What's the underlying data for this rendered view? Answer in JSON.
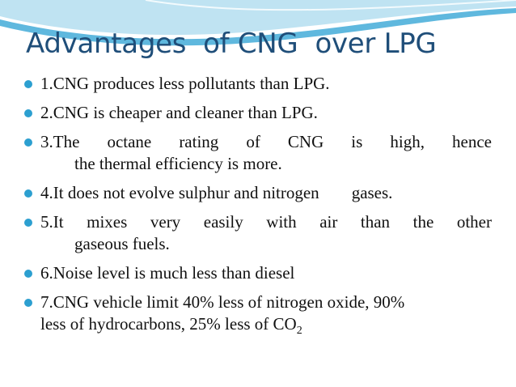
{
  "title": "Advantages  of CNG  over LPG",
  "bullets": [
    "1.CNG produces less pollutants than LPG.",
    "2.CNG is cheaper and cleaner than LPG.",
    {
      "line1": "3.The  octane  rating  of  CNG  is  high,  hence",
      "line2": "the  thermal efficiency is more."
    },
    {
      "a": "4.It does not evolve sulphur and nitrogen",
      "b": "gases."
    },
    {
      "line1": "5.It   mixes  very  easily  with  air  than  the  other",
      "line2": "gaseous fuels."
    },
    "6.Noise level is much less than diesel",
    {
      "line1": "7.CNG vehicle limit 40% less of nitrogen oxide, 90%",
      "line2": "less of hydrocarbons, 25% less of CO",
      "sub": "2"
    }
  ],
  "colors": {
    "title": "#1f4e79",
    "bullet": "#2c9fd0",
    "swoosh_light": "#bfe3f2",
    "swoosh_dark": "#5fb8de"
  }
}
